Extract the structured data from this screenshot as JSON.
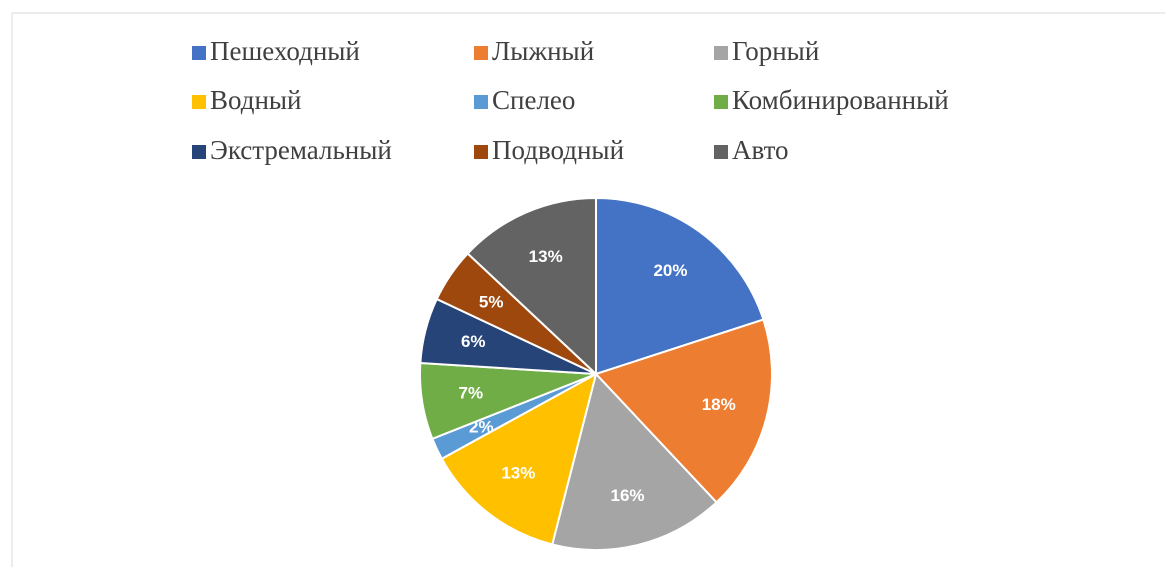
{
  "chart_data": {
    "type": "pie",
    "categories": [
      "Пешеходный",
      "Лыжный",
      "Горный",
      "Водный",
      "Спелео",
      "Комбинированный",
      "Экстремальный",
      "Подводный",
      "Авто"
    ],
    "values": [
      20,
      18,
      16,
      13,
      2,
      7,
      6,
      5,
      13
    ],
    "value_labels": [
      "20%",
      "18%",
      "16%",
      "13%",
      "2%",
      "7%",
      "6%",
      "5%",
      "13%"
    ],
    "colors": [
      "#4472c4",
      "#ed7d31",
      "#a5a5a5",
      "#ffc000",
      "#5b9bd5",
      "#70ad47",
      "#264478",
      "#9e480e",
      "#636363"
    ],
    "legend": "top"
  }
}
